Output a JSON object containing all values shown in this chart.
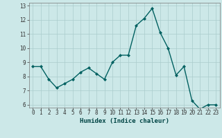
{
  "x": [
    0,
    1,
    2,
    3,
    4,
    5,
    6,
    7,
    8,
    9,
    10,
    11,
    12,
    13,
    14,
    15,
    16,
    17,
    18,
    19,
    20,
    21,
    22,
    23
  ],
  "y": [
    8.7,
    8.7,
    7.8,
    7.2,
    7.5,
    7.8,
    8.3,
    8.6,
    8.2,
    7.8,
    9.0,
    9.5,
    9.5,
    11.6,
    12.1,
    12.8,
    11.1,
    10.0,
    8.1,
    8.7,
    6.3,
    5.7,
    6.0,
    6.0
  ],
  "xlabel": "Humidex (Indice chaleur)",
  "bg_color": "#cce8e8",
  "grid_color": "#aacccc",
  "line_color": "#006060",
  "marker_color": "#006060",
  "xlim_min": -0.5,
  "xlim_max": 23.5,
  "ylim_min": 5.8,
  "ylim_max": 13.2,
  "yticks": [
    6,
    7,
    8,
    9,
    10,
    11,
    12,
    13
  ],
  "xticks": [
    0,
    1,
    2,
    3,
    4,
    5,
    6,
    7,
    8,
    9,
    10,
    11,
    12,
    13,
    14,
    15,
    16,
    17,
    18,
    19,
    20,
    21,
    22,
    23
  ],
  "xlabel_fontsize": 6.5,
  "tick_fontsize": 5.5,
  "line_width": 1.0,
  "marker_size": 2.0
}
